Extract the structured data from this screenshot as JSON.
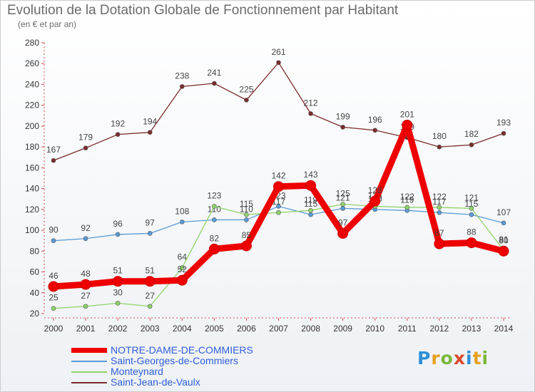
{
  "chart_data": {
    "type": "line",
    "title": "Evolution de la Dotation Globale de Fonctionnement par Habitant",
    "subtitle": "(en € et par an)",
    "x": [
      "2000",
      "2001",
      "2002",
      "2003",
      "2004",
      "2005",
      "2006",
      "2007",
      "2008",
      "2009",
      "2010",
      "2011",
      "2012",
      "2013",
      "2014"
    ],
    "ylim": [
      20,
      280
    ],
    "yticks": [
      20,
      40,
      60,
      80,
      100,
      120,
      140,
      160,
      180,
      200,
      220,
      240,
      260,
      280
    ],
    "grid": false,
    "legend_position": "bottom-left",
    "series": [
      {
        "name": "Saint-Jean-de-Vaulx",
        "color": "#7b2c2c",
        "values": [
          167,
          179,
          192,
          194,
          238,
          241,
          225,
          261,
          212,
          199,
          196,
          189,
          180,
          182,
          193
        ],
        "labels": [
          "167",
          "179",
          "192",
          "194",
          "238",
          "241",
          "225",
          "261",
          "212",
          "199",
          "196",
          "189",
          "180",
          "182",
          "193"
        ]
      },
      {
        "name": "Saint-Georges-de-Commiers",
        "color": "#5a9bd5",
        "values": [
          90,
          92,
          96,
          97,
          108,
          110,
          110,
          123,
          115,
          121,
          120,
          119,
          117,
          115,
          107
        ],
        "labels": [
          "90",
          "92",
          "96",
          "97",
          "108",
          "110",
          "110",
          "123",
          "115",
          "121",
          "120",
          "119",
          "117",
          "115",
          "107"
        ]
      },
      {
        "name": "Monteynard",
        "color": "#8fd46a",
        "values": [
          25,
          27,
          30,
          27,
          64,
          123,
          115,
          117,
          119,
          125,
          123,
          122,
          122,
          121,
          81
        ],
        "labels": [
          "25",
          "27",
          "30",
          "27",
          "64",
          "123",
          "115",
          "117",
          "119",
          "125",
          "123",
          "122",
          "122",
          "121",
          "81"
        ]
      },
      {
        "name": "NOTRE-DAME-DE-COMMIERS",
        "color": "#ee0000",
        "values": [
          46,
          48,
          51,
          51,
          52,
          82,
          85,
          142,
          143,
          97,
          128,
          201,
          87,
          88,
          80
        ],
        "labels": [
          "46",
          "48",
          "51",
          "51",
          "52",
          "82",
          "85",
          "142",
          "143",
          "97",
          "128",
          "201",
          "87",
          "88",
          "80"
        ]
      }
    ]
  },
  "legend": [
    {
      "name": "NOTRE-DAME-DE-COMMIERS",
      "color": "#ee0000",
      "thick": true
    },
    {
      "name": "Saint-Georges-de-Commiers",
      "color": "#5a9bd5",
      "thick": false
    },
    {
      "name": "Monteynard",
      "color": "#8fd46a",
      "thick": false
    },
    {
      "name": "Saint-Jean-de-Vaulx",
      "color": "#7b2c2c",
      "thick": false
    }
  ],
  "logo": {
    "alt": "Proxiti",
    "letters": [
      "P",
      "r",
      "o",
      "x",
      "i",
      "t",
      "i"
    ]
  }
}
